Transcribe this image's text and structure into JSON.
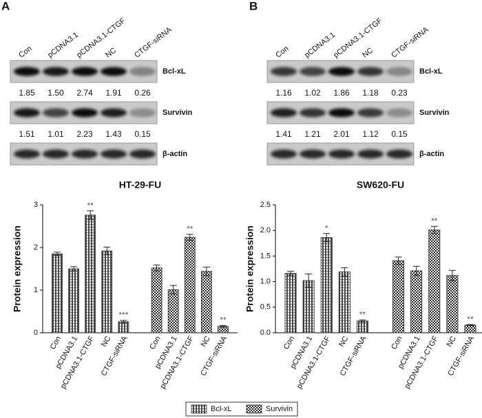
{
  "blots": [
    {
      "label": "A",
      "lanes": [
        "Con",
        "pCDNA3.1",
        "pCDNA3.1-CTGF",
        "NC",
        "CTGF-siRNA"
      ],
      "rows": [
        {
          "name": "Bcl-xL",
          "values": [
            "1.85",
            "1.50",
            "2.74",
            "1.91",
            "0.26"
          ]
        },
        {
          "name": "Survivin",
          "values": [
            "1.51",
            "1.01",
            "2.23",
            "1.43",
            "0.15"
          ]
        },
        {
          "name": "β-actin"
        }
      ]
    },
    {
      "label": "B",
      "lanes": [
        "Con",
        "pCDNA3.1",
        "pCDNA3.1-CTGF",
        "NC",
        "CTGF-siRNA"
      ],
      "rows": [
        {
          "name": "Bcl-xL",
          "values": [
            "1.16",
            "1.02",
            "1.86",
            "1.18",
            "0.23"
          ]
        },
        {
          "name": "Survivin",
          "values": [
            "1.41",
            "1.21",
            "2.01",
            "1.12",
            "0.15"
          ]
        },
        {
          "name": "β-actin"
        }
      ]
    }
  ],
  "chart_data": [
    {
      "type": "bar",
      "title": "HT-29-FU",
      "ylabel": "Protein expression",
      "categories": [
        "Con",
        "pCDNA3.1",
        "pCDNA3.1-CTGF",
        "NC",
        "CTGF-siRNA",
        "Con",
        "pCDNA3.1",
        "pCDNA3.1-CTGF",
        "NC",
        "CTGF-siRNA"
      ],
      "series": [
        {
          "color": "#222222",
          "pattern": "stripes",
          "values": [
            1.85,
            1.5,
            2.76,
            1.92,
            0.26,
            null,
            null,
            null,
            null,
            null
          ],
          "errors": [
            0.04,
            0.05,
            0.1,
            0.09,
            0.03,
            null,
            null,
            null,
            null,
            null
          ]
        },
        {
          "color": "#222222",
          "pattern": "checker",
          "values": [
            null,
            null,
            null,
            null,
            null,
            1.52,
            1.01,
            2.24,
            1.44,
            0.15
          ],
          "errors": [
            null,
            null,
            null,
            null,
            null,
            0.07,
            0.1,
            0.07,
            0.1,
            0.02
          ]
        }
      ],
      "annotations": [
        null,
        null,
        "**",
        null,
        "***",
        null,
        null,
        "**",
        null,
        "**"
      ],
      "ylim": [
        0,
        3
      ],
      "yticks": [
        0,
        1,
        2,
        3
      ]
    },
    {
      "type": "bar",
      "title": "SW620-FU",
      "ylabel": "Protein expression",
      "categories": [
        "Con",
        "pCDNA3.1",
        "pCDNA3.1-CTGF",
        "NC",
        "CTGF-siRNA",
        "Con",
        "pCDNA3.1",
        "pCDNA3.1-CTGF",
        "NC",
        "CTGF-siRNA"
      ],
      "series": [
        {
          "color": "#222222",
          "pattern": "stripes",
          "values": [
            1.16,
            1.02,
            1.86,
            1.19,
            0.23,
            null,
            null,
            null,
            null,
            null
          ],
          "errors": [
            0.04,
            0.13,
            0.08,
            0.08,
            0.02,
            null,
            null,
            null,
            null,
            null
          ]
        },
        {
          "color": "#222222",
          "pattern": "checker",
          "values": [
            null,
            null,
            null,
            null,
            null,
            1.41,
            1.21,
            2.01,
            1.12,
            0.15
          ],
          "errors": [
            null,
            null,
            null,
            null,
            null,
            0.07,
            0.09,
            0.07,
            0.1,
            0.01
          ]
        }
      ],
      "annotations": [
        null,
        null,
        "*",
        null,
        "**",
        null,
        null,
        "**",
        null,
        "**"
      ],
      "ylim": [
        0,
        2.5
      ],
      "yticks": [
        {
          "value": 0,
          "label": "0.0"
        },
        0.5,
        {
          "value": 1,
          "label": "1.0"
        },
        1.5,
        {
          "value": 2,
          "label": "2.0"
        },
        2.5
      ]
    }
  ],
  "legend": {
    "entries": [
      {
        "name": "Bcl-xL",
        "pattern": "stripes"
      },
      {
        "name": "Survivin",
        "pattern": "checker"
      }
    ]
  }
}
